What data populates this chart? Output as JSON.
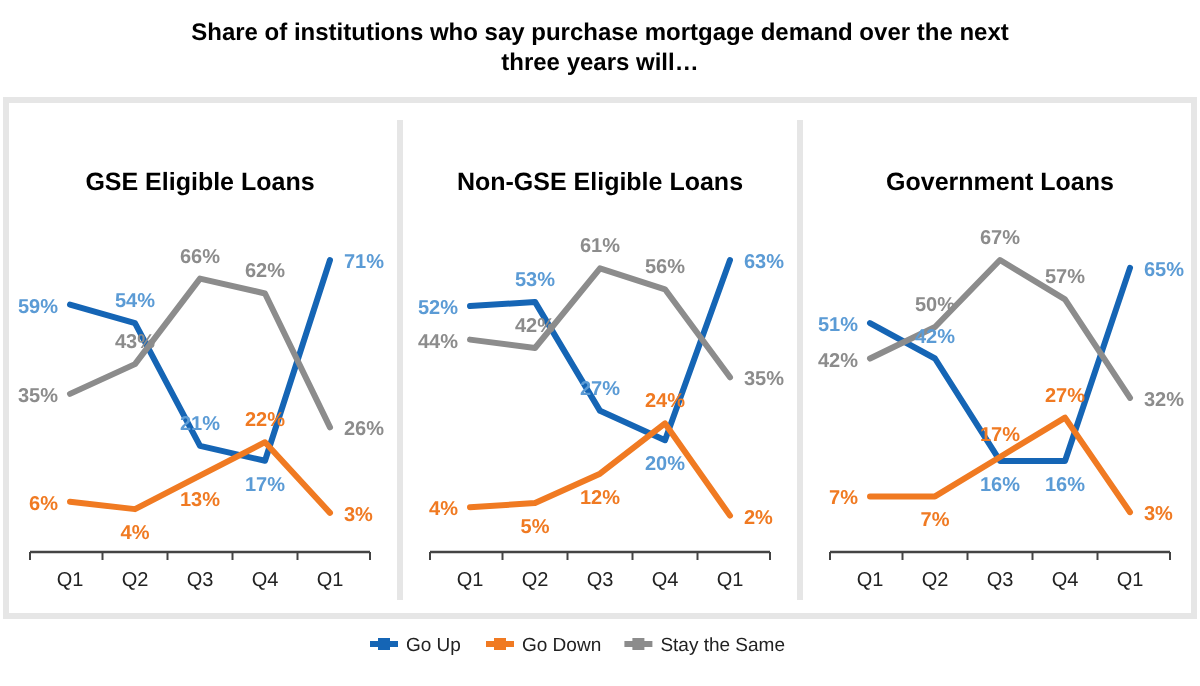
{
  "chart_data": [
    {
      "type": "line",
      "title": "GSE Eligible Loans",
      "annotations": [
        "Share of institutions who say purchase mortgage demand over the next three years will…"
      ],
      "categories": [
        "Q1",
        "Q2",
        "Q3",
        "Q4",
        "Q1"
      ],
      "tick_labels": "x",
      "legend": "bottom",
      "series": [
        {
          "name": "Go Up",
          "color": "#1565b5",
          "values": [
            59,
            54,
            21,
            17,
            71
          ],
          "value_labels": [
            "59%",
            "54%",
            "21%",
            "17%",
            "71%"
          ]
        },
        {
          "name": "Go Down",
          "color": "#f07a22",
          "values": [
            6,
            4,
            13,
            22,
            3
          ],
          "value_labels": [
            "6%",
            "4%",
            "13%",
            "22%",
            "3%"
          ]
        },
        {
          "name": "Stay the Same",
          "color": "#8c8c8c",
          "values": [
            35,
            43,
            66,
            62,
            26
          ],
          "value_labels": [
            "35%",
            "43%",
            "66%",
            "62%",
            "26%"
          ]
        }
      ]
    },
    {
      "type": "line",
      "title": "Non-GSE Eligible Loans",
      "categories": [
        "Q1",
        "Q2",
        "Q3",
        "Q4",
        "Q1"
      ],
      "tick_labels": "x",
      "series": [
        {
          "color": "#1565b5",
          "values": [
            52,
            53,
            27,
            20,
            63
          ],
          "value_labels": [
            "52%",
            "53%",
            "27%",
            "20%",
            "63%"
          ]
        },
        {
          "color": "#f07a22",
          "values": [
            4,
            5,
            12,
            24,
            2
          ],
          "value_labels": [
            "4%",
            "5%",
            "12%",
            "24%",
            "2%"
          ]
        },
        {
          "color": "#8c8c8c",
          "values": [
            44,
            42,
            61,
            56,
            35
          ],
          "value_labels": [
            "44%",
            "42%",
            "61%",
            "56%",
            "35%"
          ]
        }
      ]
    },
    {
      "type": "line",
      "title": "Government Loans",
      "categories": [
        "Q1",
        "Q2",
        "Q3",
        "Q4",
        "Q1"
      ],
      "tick_labels": "x",
      "series": [
        {
          "color": "#1565b5",
          "values": [
            51,
            42,
            16,
            16,
            65
          ],
          "value_labels": [
            "51%",
            "42%",
            "16%",
            "16%",
            "65%"
          ]
        },
        {
          "color": "#f07a22",
          "values": [
            7,
            7,
            17,
            27,
            3
          ],
          "value_labels": [
            "7%",
            "7%",
            "17%",
            "27%",
            "3%"
          ]
        },
        {
          "color": "#8c8c8c",
          "values": [
            42,
            50,
            67,
            57,
            32
          ],
          "value_labels": [
            "42%",
            "50%",
            "67%",
            "57%",
            "32%"
          ]
        }
      ]
    }
  ]
}
